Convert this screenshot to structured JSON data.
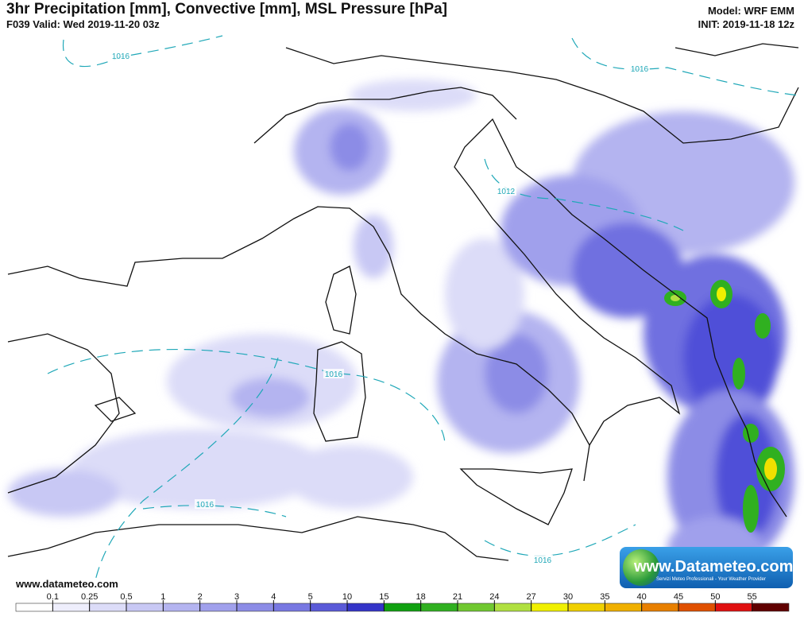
{
  "title": "3hr Precipitation [mm], Convective [mm], MSL Pressure [hPa]",
  "subtitle": "F039 Valid: Wed 2019-11-20 03z",
  "model": "Model: WRF EMM",
  "init": "INIT: 2019-11-18 12z",
  "website": "www.datameteo.com",
  "logo": {
    "name": "www.Datameteo.com",
    "tagline": "Servizi Meteo Professionali - Your Weather Provider"
  },
  "isobar_labels": [
    1016,
    1016,
    1012,
    1016,
    1016,
    1016
  ],
  "colorbar": {
    "ticks": [
      0.1,
      0.25,
      0.5,
      1,
      2,
      3,
      4,
      5,
      10,
      15,
      18,
      21,
      24,
      27,
      30,
      35,
      40,
      45,
      50,
      55
    ],
    "colors": [
      "#ffffff",
      "#eeeefc",
      "#dcdcf8",
      "#c8c8f4",
      "#b4b4f0",
      "#a0a0ec",
      "#8c8ce6",
      "#7878e2",
      "#5a5ad8",
      "#3434c8",
      "#10a010",
      "#30b020",
      "#70c830",
      "#b0e040",
      "#f0f000",
      "#f0d000",
      "#f0b000",
      "#e88000",
      "#e05000",
      "#e01010",
      "#600000"
    ]
  }
}
